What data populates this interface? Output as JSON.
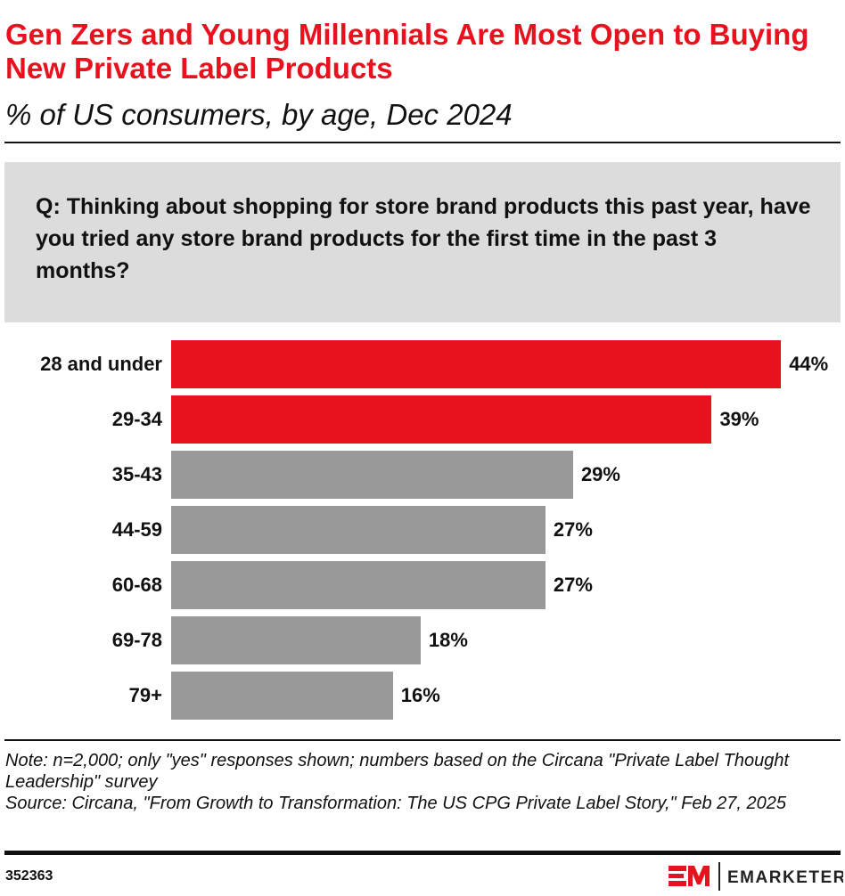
{
  "title": "Gen Zers and Young Millennials Are Most Open to Buying New Private Label Products",
  "subtitle": "% of US consumers, by age, Dec 2024",
  "question": "Q: Thinking about shopping for store brand products this past year, have you tried any store brand products for the first time in the past 3 months?",
  "chart_data": {
    "type": "bar",
    "orientation": "horizontal",
    "categories": [
      "28 and under",
      "29-34",
      "35-43",
      "44-59",
      "60-68",
      "69-78",
      "79+"
    ],
    "values": [
      44,
      39,
      29,
      27,
      27,
      18,
      16
    ],
    "value_labels": [
      "44%",
      "39%",
      "29%",
      "27%",
      "27%",
      "18%",
      "16%"
    ],
    "colors": [
      "#e8121e",
      "#e8121e",
      "#999999",
      "#999999",
      "#999999",
      "#999999",
      "#999999"
    ],
    "grid": false
  },
  "note": "Note: n=2,000; only \"yes\" responses shown; numbers based on the Circana \"Private Label Thought Leadership\" survey",
  "source": "Source: Circana, \"From Growth to Transformation: The US CPG Private Label Story,\" Feb 27, 2025",
  "chart_id": "352363",
  "logo": {
    "mark": "EM",
    "name": "EMARKETER"
  }
}
